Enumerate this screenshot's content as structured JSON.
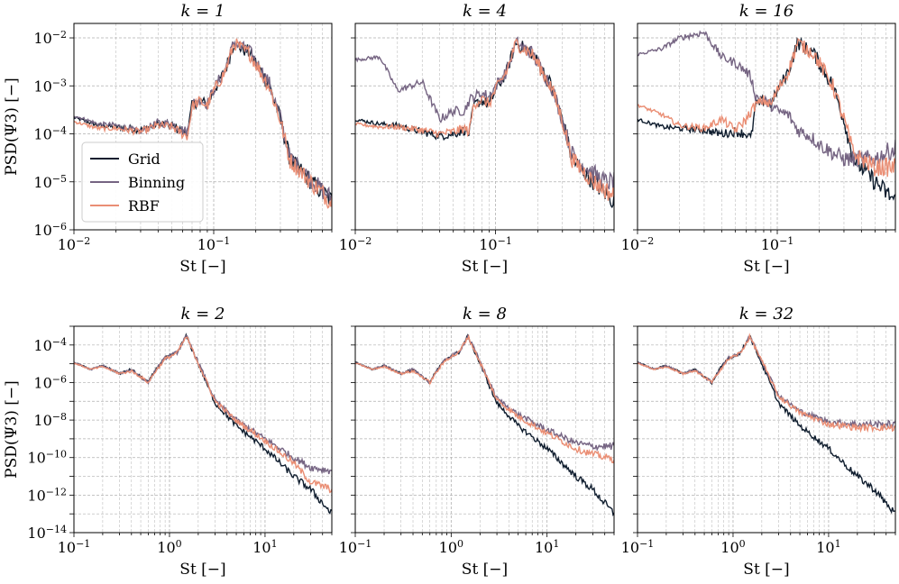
{
  "figure": {
    "series_colors": {
      "Grid": "#0f1d2e",
      "Binning": "#756482",
      "RBF": "#ea8e74"
    },
    "legend": {
      "entries": [
        "Grid",
        "Binning",
        "RBF"
      ],
      "placement": "lower-left of first panel"
    },
    "grid_color": "#b0b0b0"
  },
  "chart_data": [
    {
      "type": "line",
      "title": "k = 1",
      "xlabel": "St [−]",
      "ylabel": "PSD(Ψ3) [−]",
      "xscale": "log",
      "yscale": "log",
      "xlim": [
        0.01,
        0.7
      ],
      "ylim": [
        1e-06,
        0.02
      ],
      "xticks": [
        {
          "v": 0.01,
          "label": "10^-2"
        },
        {
          "v": 0.1,
          "label": "10^-1"
        }
      ],
      "yticks": [
        {
          "v": 1e-06,
          "label": "10^-6"
        },
        {
          "v": 1e-05,
          "label": "10^-5"
        },
        {
          "v": 0.0001,
          "label": "10^-4"
        },
        {
          "v": 0.001,
          "label": "10^-3"
        },
        {
          "v": 0.01,
          "label": "10^-2"
        }
      ],
      "series": [
        {
          "name": "Grid",
          "x": [
            0.01,
            0.015,
            0.02,
            0.03,
            0.04,
            0.05,
            0.06,
            0.065,
            0.07,
            0.08,
            0.09,
            0.1,
            0.12,
            0.14,
            0.16,
            0.18,
            0.2,
            0.25,
            0.3,
            0.35,
            0.4,
            0.5,
            0.6,
            0.7
          ],
          "y": [
            0.00022,
            0.00015,
            0.00014,
            0.00012,
            0.00016,
            0.00015,
            0.00011,
            0.0001,
            0.0004,
            0.0005,
            0.0004,
            0.0008,
            0.002,
            0.008,
            0.006,
            0.005,
            0.003,
            0.001,
            0.0002,
            3e-05,
            2e-05,
            1e-05,
            6e-06,
            4e-06
          ]
        },
        {
          "name": "Binning",
          "x": [
            0.01,
            0.015,
            0.02,
            0.03,
            0.04,
            0.05,
            0.06,
            0.065,
            0.07,
            0.08,
            0.09,
            0.1,
            0.12,
            0.14,
            0.16,
            0.18,
            0.2,
            0.25,
            0.3,
            0.35,
            0.4,
            0.5,
            0.6,
            0.7
          ],
          "y": [
            0.00024,
            0.00016,
            0.00015,
            0.00011,
            0.00017,
            0.00016,
            0.00012,
            0.00011,
            0.00042,
            0.00052,
            0.00042,
            0.00085,
            0.0021,
            0.0082,
            0.0062,
            0.0052,
            0.0032,
            0.0011,
            0.00021,
            3.2e-05,
            2.2e-05,
            1.1e-05,
            6.5e-06,
            4.5e-06
          ]
        },
        {
          "name": "RBF",
          "x": [
            0.01,
            0.015,
            0.02,
            0.03,
            0.04,
            0.05,
            0.06,
            0.065,
            0.07,
            0.08,
            0.09,
            0.1,
            0.12,
            0.14,
            0.16,
            0.18,
            0.2,
            0.25,
            0.3,
            0.35,
            0.4,
            0.5,
            0.6,
            0.7
          ],
          "y": [
            0.00018,
            0.00013,
            0.00013,
            0.00011,
            0.00015,
            0.00014,
            0.0001,
            9e-05,
            0.00038,
            0.00048,
            0.00038,
            0.00078,
            0.0019,
            0.0078,
            0.0058,
            0.0048,
            0.0029,
            0.00095,
            0.00019,
            2.8e-05,
            1.9e-05,
            9.5e-06,
            5.8e-06,
            3.8e-06
          ]
        }
      ]
    },
    {
      "type": "line",
      "title": "k = 4",
      "xlabel": "St [−]",
      "ylabel": "",
      "xscale": "log",
      "yscale": "log",
      "xlim": [
        0.01,
        0.7
      ],
      "ylim": [
        1e-06,
        0.02
      ],
      "xticks": [
        {
          "v": 0.01,
          "label": "10^-2"
        },
        {
          "v": 0.1,
          "label": "10^-1"
        }
      ],
      "yticks": [],
      "series": [
        {
          "name": "Grid",
          "x": [
            0.01,
            0.015,
            0.02,
            0.03,
            0.04,
            0.05,
            0.06,
            0.065,
            0.07,
            0.08,
            0.09,
            0.1,
            0.12,
            0.14,
            0.16,
            0.18,
            0.2,
            0.25,
            0.3,
            0.35,
            0.4,
            0.5,
            0.6,
            0.7
          ],
          "y": [
            0.0002,
            0.00016,
            0.00015,
            0.00011,
            9e-05,
            0.0001,
            0.00012,
            0.0001,
            0.0004,
            0.0005,
            0.0004,
            0.0008,
            0.002,
            0.008,
            0.006,
            0.005,
            0.003,
            0.001,
            0.0002,
            3e-05,
            2e-05,
            1e-05,
            6e-06,
            4e-06
          ]
        },
        {
          "name": "Binning",
          "x": [
            0.01,
            0.015,
            0.02,
            0.03,
            0.04,
            0.05,
            0.06,
            0.065,
            0.07,
            0.08,
            0.09,
            0.1,
            0.12,
            0.14,
            0.16,
            0.18,
            0.2,
            0.25,
            0.3,
            0.35,
            0.4,
            0.5,
            0.6,
            0.7
          ],
          "y": [
            0.0035,
            0.004,
            0.0008,
            0.0012,
            0.0002,
            0.0003,
            0.0003,
            0.0005,
            0.0006,
            0.0007,
            0.0006,
            0.001,
            0.002,
            0.008,
            0.006,
            0.005,
            0.003,
            0.001,
            0.0002,
            4e-05,
            2.5e-05,
            1.5e-05,
            1e-05,
            1e-05
          ]
        },
        {
          "name": "RBF",
          "x": [
            0.01,
            0.015,
            0.02,
            0.03,
            0.04,
            0.05,
            0.06,
            0.065,
            0.07,
            0.08,
            0.09,
            0.1,
            0.12,
            0.14,
            0.16,
            0.18,
            0.2,
            0.25,
            0.3,
            0.35,
            0.4,
            0.5,
            0.6,
            0.7
          ],
          "y": [
            0.00016,
            0.00014,
            0.00014,
            0.00012,
            0.0001,
            0.00011,
            0.00013,
            0.00011,
            0.00042,
            0.00052,
            0.00042,
            0.00082,
            0.002,
            0.0078,
            0.0058,
            0.0048,
            0.0029,
            0.00095,
            0.00019,
            3e-05,
            2e-05,
            1e-05,
            7e-06,
            5e-06
          ]
        }
      ]
    },
    {
      "type": "line",
      "title": "k = 16",
      "xlabel": "St [−]",
      "ylabel": "",
      "xscale": "log",
      "yscale": "log",
      "xlim": [
        0.01,
        0.7
      ],
      "ylim": [
        1e-06,
        0.02
      ],
      "xticks": [
        {
          "v": 0.01,
          "label": "10^-2"
        },
        {
          "v": 0.1,
          "label": "10^-1"
        }
      ],
      "yticks": [],
      "series": [
        {
          "name": "Grid",
          "x": [
            0.01,
            0.015,
            0.02,
            0.03,
            0.04,
            0.05,
            0.06,
            0.065,
            0.07,
            0.08,
            0.09,
            0.1,
            0.12,
            0.14,
            0.16,
            0.18,
            0.2,
            0.25,
            0.3,
            0.35,
            0.4,
            0.5,
            0.6,
            0.7
          ],
          "y": [
            0.0002,
            0.00014,
            0.00013,
            0.00012,
            0.0001,
            0.00011,
            0.0001,
            8e-05,
            0.0004,
            0.0005,
            0.0004,
            0.0008,
            0.002,
            0.008,
            0.006,
            0.005,
            0.003,
            0.001,
            0.0002,
            3e-05,
            2e-05,
            1e-05,
            6e-06,
            4e-06
          ]
        },
        {
          "name": "Binning",
          "x": [
            0.01,
            0.015,
            0.02,
            0.03,
            0.04,
            0.05,
            0.06,
            0.065,
            0.07,
            0.08,
            0.09,
            0.1,
            0.12,
            0.14,
            0.16,
            0.18,
            0.2,
            0.25,
            0.3,
            0.35,
            0.4,
            0.5,
            0.6,
            0.7
          ],
          "y": [
            0.0045,
            0.006,
            0.01,
            0.013,
            0.004,
            0.003,
            0.002,
            0.0015,
            0.0006,
            0.0005,
            0.0004,
            0.0003,
            0.00025,
            0.00012,
            0.0001,
            8e-05,
            6e-05,
            4e-05,
            3e-05,
            3e-05,
            3e-05,
            3e-05,
            4e-05,
            5e-05
          ]
        },
        {
          "name": "RBF",
          "x": [
            0.01,
            0.015,
            0.02,
            0.03,
            0.04,
            0.05,
            0.06,
            0.065,
            0.07,
            0.08,
            0.09,
            0.1,
            0.12,
            0.14,
            0.16,
            0.18,
            0.2,
            0.25,
            0.3,
            0.35,
            0.4,
            0.5,
            0.6,
            0.7
          ],
          "y": [
            0.0004,
            0.00025,
            0.00015,
            0.00013,
            0.0002,
            0.00012,
            0.0002,
            0.0003,
            0.0004,
            0.0005,
            0.0004,
            0.0008,
            0.002,
            0.008,
            0.006,
            0.005,
            0.003,
            0.001,
            0.0002,
            4e-05,
            3e-05,
            2e-05,
            2e-05,
            2e-05
          ]
        }
      ]
    },
    {
      "type": "line",
      "title": "k = 2",
      "xlabel": "St [−]",
      "ylabel": "PSD(Ψ3) [−]",
      "xscale": "log",
      "yscale": "log",
      "xlim": [
        0.1,
        50
      ],
      "ylim": [
        1e-14,
        0.001
      ],
      "xticks": [
        {
          "v": 0.1,
          "label": "10^-1"
        },
        {
          "v": 1,
          "label": "10^0"
        },
        {
          "v": 10,
          "label": "10^1"
        }
      ],
      "yticks": [
        {
          "v": 1e-14,
          "label": "10^-14"
        },
        {
          "v": 1e-12,
          "label": "10^-12"
        },
        {
          "v": 1e-10,
          "label": "10^-10"
        },
        {
          "v": 1e-08,
          "label": "10^-8"
        },
        {
          "v": 1e-06,
          "label": "10^-6"
        },
        {
          "v": 0.0001,
          "label": "10^-4"
        }
      ],
      "series": [
        {
          "name": "Grid",
          "x": [
            0.1,
            0.15,
            0.2,
            0.3,
            0.4,
            0.5,
            0.6,
            0.7,
            0.9,
            1.2,
            1.5,
            2,
            3,
            5,
            10,
            20,
            30,
            50
          ],
          "y": [
            1.2e-05,
            5e-06,
            8e-06,
            3e-06,
            5e-06,
            2e-06,
            1e-06,
            4e-06,
            2e-05,
            4e-05,
            0.0003,
            1e-05,
            8e-08,
            5e-09,
            3e-10,
            1e-11,
            2e-12,
            1e-13
          ]
        },
        {
          "name": "Binning",
          "x": [
            0.1,
            0.15,
            0.2,
            0.3,
            0.4,
            0.5,
            0.6,
            0.7,
            0.9,
            1.2,
            1.5,
            2,
            3,
            5,
            10,
            20,
            30,
            50
          ],
          "y": [
            1.2e-05,
            5e-06,
            8e-06,
            3e-06,
            5e-06,
            2e-06,
            1e-06,
            4e-06,
            2e-05,
            4e-05,
            0.0003,
            1.2e-05,
            1.1e-07,
            1e-08,
            1e-09,
            1e-10,
            3e-11,
            2e-11
          ]
        },
        {
          "name": "RBF",
          "x": [
            0.1,
            0.15,
            0.2,
            0.3,
            0.4,
            0.5,
            0.6,
            0.7,
            0.9,
            1.2,
            1.5,
            2,
            3,
            5,
            10,
            20,
            30,
            50
          ],
          "y": [
            1.1e-05,
            5e-06,
            7e-06,
            3e-06,
            4e-06,
            2e-06,
            1e-06,
            3.5e-06,
            1.8e-05,
            3.8e-05,
            0.00028,
            1.1e-05,
            1e-07,
            9e-09,
            8e-10,
            5e-11,
            5e-12,
            2e-12
          ]
        }
      ]
    },
    {
      "type": "line",
      "title": "k = 8",
      "xlabel": "St [−]",
      "ylabel": "",
      "xscale": "log",
      "yscale": "log",
      "xlim": [
        0.1,
        50
      ],
      "ylim": [
        1e-14,
        0.001
      ],
      "xticks": [
        {
          "v": 0.1,
          "label": "10^-1"
        },
        {
          "v": 1,
          "label": "10^0"
        },
        {
          "v": 10,
          "label": "10^1"
        }
      ],
      "yticks": [],
      "series": [
        {
          "name": "Grid",
          "x": [
            0.1,
            0.15,
            0.2,
            0.3,
            0.4,
            0.5,
            0.6,
            0.7,
            0.9,
            1.2,
            1.5,
            2,
            3,
            5,
            10,
            20,
            30,
            50
          ],
          "y": [
            1.2e-05,
            5e-06,
            8e-06,
            3e-06,
            5e-06,
            2e-06,
            1e-06,
            4e-06,
            2e-05,
            4e-05,
            0.0003,
            1e-05,
            8e-08,
            5e-09,
            3e-10,
            1e-11,
            2e-12,
            1e-13
          ]
        },
        {
          "name": "Binning",
          "x": [
            0.1,
            0.15,
            0.2,
            0.3,
            0.4,
            0.5,
            0.6,
            0.7,
            0.9,
            1.2,
            1.5,
            2,
            3,
            5,
            10,
            20,
            30,
            50
          ],
          "y": [
            1.2e-05,
            5e-06,
            8e-06,
            3e-06,
            5e-06,
            2e-06,
            1e-06,
            4e-06,
            2e-05,
            4e-05,
            0.0003,
            1.3e-05,
            1.4e-07,
            2e-08,
            3e-09,
            6e-10,
            4e-10,
            4e-10
          ]
        },
        {
          "name": "RBF",
          "x": [
            0.1,
            0.15,
            0.2,
            0.3,
            0.4,
            0.5,
            0.6,
            0.7,
            0.9,
            1.2,
            1.5,
            2,
            3,
            5,
            10,
            20,
            30,
            50
          ],
          "y": [
            1.1e-05,
            5e-06,
            7e-06,
            3e-06,
            4e-06,
            2e-06,
            1e-06,
            3.5e-06,
            1.8e-05,
            3.8e-05,
            0.00028,
            1.2e-05,
            1.2e-07,
            1.5e-08,
            2e-09,
            3e-10,
            1.5e-10,
            8e-11
          ]
        }
      ]
    },
    {
      "type": "line",
      "title": "k = 32",
      "xlabel": "St [−]",
      "ylabel": "",
      "xscale": "log",
      "yscale": "log",
      "xlim": [
        0.1,
        50
      ],
      "ylim": [
        1e-14,
        0.001
      ],
      "xticks": [
        {
          "v": 0.1,
          "label": "10^-1"
        },
        {
          "v": 1,
          "label": "10^0"
        },
        {
          "v": 10,
          "label": "10^1"
        }
      ],
      "yticks": [],
      "series": [
        {
          "name": "Grid",
          "x": [
            0.1,
            0.15,
            0.2,
            0.3,
            0.4,
            0.5,
            0.6,
            0.7,
            0.9,
            1.2,
            1.5,
            2,
            3,
            5,
            10,
            20,
            30,
            50
          ],
          "y": [
            1.2e-05,
            5e-06,
            8e-06,
            3e-06,
            5e-06,
            2e-06,
            1e-06,
            4e-06,
            2e-05,
            4e-05,
            0.0003,
            1e-05,
            8e-08,
            5e-09,
            3e-10,
            1e-11,
            2e-12,
            1e-13
          ]
        },
        {
          "name": "Binning",
          "x": [
            0.1,
            0.15,
            0.2,
            0.3,
            0.4,
            0.5,
            0.6,
            0.7,
            0.9,
            1.2,
            1.5,
            2,
            3,
            5,
            10,
            20,
            30,
            50
          ],
          "y": [
            1.2e-05,
            5e-06,
            8e-06,
            3e-06,
            5e-06,
            2e-06,
            1e-06,
            4e-06,
            2e-05,
            4e-05,
            0.0003,
            1.5e-05,
            2e-07,
            3e-08,
            8e-09,
            6e-09,
            6e-09,
            6e-09
          ]
        },
        {
          "name": "RBF",
          "x": [
            0.1,
            0.15,
            0.2,
            0.3,
            0.4,
            0.5,
            0.6,
            0.7,
            0.9,
            1.2,
            1.5,
            2,
            3,
            5,
            10,
            20,
            30,
            50
          ],
          "y": [
            1.1e-05,
            5e-06,
            7e-06,
            3e-06,
            4e-06,
            2e-06,
            1e-06,
            3.5e-06,
            1.8e-05,
            3.8e-05,
            0.00028,
            1.4e-05,
            1.8e-07,
            2.5e-08,
            6e-09,
            4e-09,
            4e-09,
            4e-09
          ]
        }
      ]
    }
  ]
}
